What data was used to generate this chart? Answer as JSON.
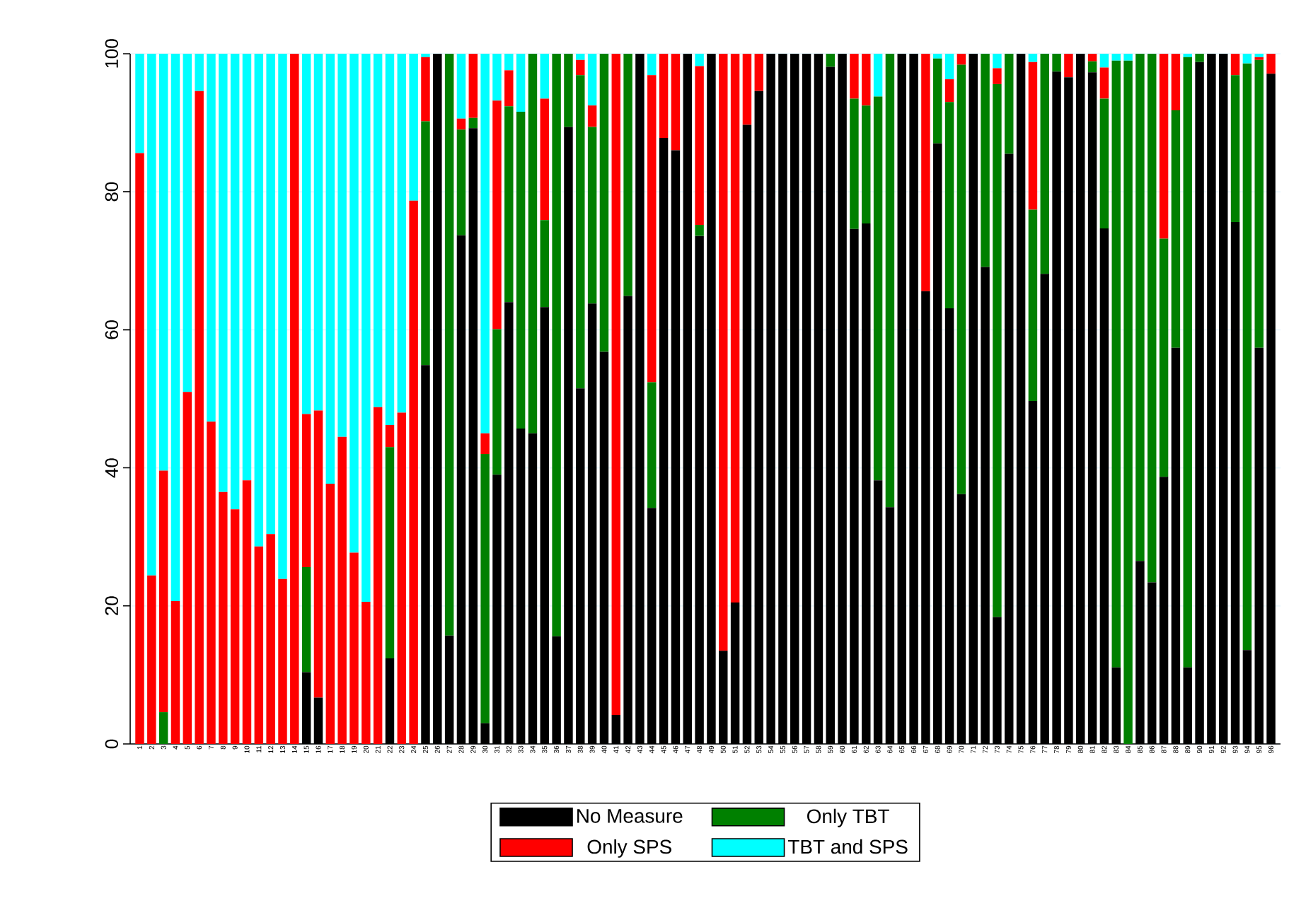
{
  "chart_data": {
    "type": "bar",
    "stacked": true,
    "categories": [
      "1",
      "2",
      "3",
      "4",
      "5",
      "6",
      "7",
      "8",
      "9",
      "10",
      "11",
      "12",
      "13",
      "14",
      "15",
      "16",
      "17",
      "18",
      "19",
      "20",
      "21",
      "22",
      "23",
      "24",
      "25",
      "26",
      "27",
      "28",
      "29",
      "30",
      "31",
      "32",
      "33",
      "34",
      "35",
      "36",
      "37",
      "38",
      "39",
      "40",
      "41",
      "42",
      "43",
      "44",
      "45",
      "46",
      "47",
      "48",
      "49",
      "50",
      "51",
      "52",
      "53",
      "54",
      "55",
      "56",
      "57",
      "58",
      "59",
      "60",
      "61",
      "62",
      "63",
      "64",
      "65",
      "66",
      "67",
      "68",
      "69",
      "70",
      "71",
      "72",
      "73",
      "74",
      "75",
      "76",
      "77",
      "78",
      "79",
      "80",
      "81",
      "82",
      "83",
      "84",
      "85",
      "86",
      "87",
      "88",
      "89",
      "90",
      "91",
      "92",
      "93",
      "94",
      "95",
      "96"
    ],
    "series": [
      {
        "name": "No Measure",
        "color": "#000000",
        "values": [
          0,
          0,
          0,
          0,
          0,
          0,
          0,
          0,
          0,
          0,
          0,
          0,
          0,
          0,
          10.4,
          6.7,
          0,
          0,
          0,
          0,
          0,
          12.4,
          0,
          0,
          54.9,
          100,
          15.7,
          73.7,
          89.2,
          3,
          39,
          64,
          45.7,
          45,
          63.3,
          15.6,
          89.4,
          51.5,
          63.8,
          56.8,
          4.2,
          64.9,
          100,
          34.2,
          87.8,
          86,
          100,
          73.6,
          100,
          13.5,
          20.5,
          89.7,
          94.6,
          100,
          100,
          100,
          100,
          100,
          98.1,
          100,
          74.6,
          75.4,
          38.2,
          34.3,
          100,
          100,
          65.6,
          87,
          63.1,
          36.2,
          100,
          69.1,
          18.4,
          85.5,
          100,
          49.7,
          68.1,
          97.4,
          96.6,
          100,
          97.3,
          74.7,
          11.1,
          0,
          26.5,
          23.4,
          38.7,
          57.4,
          11.1,
          98.8,
          100,
          100,
          75.6,
          13.6,
          57.4,
          97.1
        ]
      },
      {
        "name": "Only TBT",
        "color": "#008000",
        "values": [
          0,
          0,
          4.6,
          0,
          0,
          0,
          0,
          0,
          0,
          0,
          0,
          0,
          0,
          0,
          15.2,
          0,
          0,
          0,
          0,
          0,
          0,
          30.6,
          0,
          0,
          35.3,
          0,
          84.3,
          15.3,
          1.5,
          39,
          21.1,
          28.4,
          45.9,
          55,
          12.6,
          84.4,
          10.6,
          45.4,
          25.6,
          43.2,
          0,
          35.1,
          0,
          18.2,
          0,
          0,
          0,
          1.6,
          0,
          0,
          0,
          0,
          0,
          0,
          0,
          0,
          0,
          0,
          1.9,
          0,
          18.9,
          17.1,
          55.6,
          65.7,
          0,
          0,
          0,
          12.3,
          29.9,
          62.2,
          0,
          30.9,
          77.2,
          14.5,
          0,
          27.7,
          31.9,
          2.6,
          0,
          0,
          1.6,
          18.8,
          87.9,
          99,
          73.5,
          76.6,
          34.5,
          34.4,
          88.4,
          1.2,
          0,
          0,
          21.3,
          85,
          41.7,
          0
        ]
      },
      {
        "name": "Only SPS",
        "color": "#ff0000",
        "values": [
          85.6,
          24.4,
          35,
          20.7,
          51,
          94.6,
          46.7,
          36.5,
          34,
          38.2,
          28.6,
          30.4,
          23.9,
          100,
          22.2,
          41.6,
          37.7,
          44.5,
          27.7,
          20.6,
          48.8,
          3.2,
          48,
          78.7,
          9.3,
          0,
          0,
          1.6,
          9.3,
          3,
          33.1,
          5.2,
          0,
          0,
          17.6,
          0,
          0,
          2.2,
          3.1,
          0,
          95.8,
          0,
          0,
          44.5,
          12.2,
          14,
          0,
          23,
          0,
          86.5,
          79.5,
          10.3,
          5.4,
          0,
          0,
          0,
          0,
          0,
          0,
          0,
          6.5,
          7.5,
          0,
          0,
          0,
          0,
          34.4,
          0,
          3.3,
          1.6,
          0,
          0,
          2.3,
          0,
          0,
          21.4,
          0,
          0,
          3.4,
          0,
          1.1,
          4.5,
          0,
          0,
          0,
          0,
          26.8,
          8.2,
          0,
          0,
          0,
          0,
          3.1,
          0,
          0.4,
          2.9
        ]
      },
      {
        "name": "TBT and SPS",
        "color": "#00ffff",
        "values": [
          14.4,
          75.6,
          60.4,
          79.3,
          49,
          5.4,
          53.3,
          63.5,
          66,
          61.8,
          71.4,
          69.6,
          76.1,
          0,
          52.2,
          51.7,
          62.3,
          55.5,
          72.3,
          79.4,
          51.2,
          53.8,
          52,
          21.3,
          0.5,
          0,
          0,
          9.4,
          0,
          55,
          6.8,
          2.4,
          8.4,
          0,
          6.5,
          0,
          0,
          0.9,
          7.5,
          0,
          0,
          0,
          0,
          3.1,
          0,
          0,
          0,
          1.8,
          0,
          0,
          0,
          0,
          0,
          0,
          0,
          0,
          0,
          0,
          0,
          0,
          0,
          0,
          6.2,
          0,
          0,
          0,
          0,
          0.7,
          3.7,
          0,
          0,
          0,
          2.1,
          0,
          0,
          1.2,
          0,
          0,
          0,
          0,
          0,
          2,
          1,
          1,
          0,
          0,
          0,
          0,
          0.5,
          0,
          0,
          0,
          0,
          1.4,
          0.5,
          0
        ]
      }
    ],
    "ylim": [
      0,
      100
    ],
    "yticks": [
      0,
      20,
      40,
      60,
      80,
      100
    ],
    "grid": "y",
    "legend": "bottom"
  }
}
